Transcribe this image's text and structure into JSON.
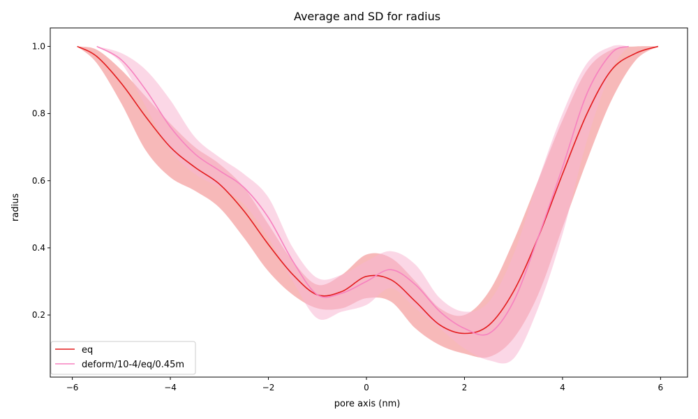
{
  "chart_data": {
    "type": "line",
    "title": "Average and SD for radius",
    "xlabel": "pore axis (nm)",
    "ylabel": "radius",
    "xlim": [
      -6.45,
      6.55
    ],
    "ylim": [
      0.015,
      1.055
    ],
    "xticks": [
      -6,
      -4,
      -2,
      0,
      2,
      4,
      6
    ],
    "xtick_labels": [
      "−6",
      "−4",
      "−2",
      "0",
      "2",
      "4",
      "6"
    ],
    "yticks": [
      0.2,
      0.4,
      0.6,
      0.8,
      1.0
    ],
    "ytick_labels": [
      "0.2",
      "0.4",
      "0.6",
      "0.8",
      "1.0"
    ],
    "legend_position": "lower-left",
    "grid": false,
    "series": [
      {
        "name": "eq",
        "color": "#e31a1c",
        "band_color": "#f08080",
        "x": [
          -5.9,
          -5.5,
          -5.0,
          -4.5,
          -4.0,
          -3.5,
          -3.0,
          -2.5,
          -2.0,
          -1.5,
          -1.0,
          -0.5,
          0.0,
          0.5,
          1.0,
          1.5,
          2.0,
          2.5,
          3.0,
          3.5,
          4.0,
          4.5,
          5.0,
          5.5,
          5.95
        ],
        "mean": [
          1.0,
          0.97,
          0.89,
          0.79,
          0.7,
          0.64,
          0.59,
          0.51,
          0.41,
          0.32,
          0.26,
          0.27,
          0.315,
          0.305,
          0.24,
          0.17,
          0.145,
          0.17,
          0.27,
          0.43,
          0.62,
          0.8,
          0.93,
          0.98,
          1.0
        ],
        "upper": [
          1.0,
          0.99,
          0.93,
          0.85,
          0.77,
          0.7,
          0.65,
          0.58,
          0.47,
          0.36,
          0.29,
          0.32,
          0.38,
          0.37,
          0.3,
          0.22,
          0.2,
          0.27,
          0.42,
          0.6,
          0.78,
          0.93,
          0.99,
          1.0,
          1.0
        ],
        "lower": [
          1.0,
          0.95,
          0.83,
          0.69,
          0.61,
          0.57,
          0.52,
          0.43,
          0.33,
          0.26,
          0.22,
          0.22,
          0.25,
          0.24,
          0.16,
          0.11,
          0.085,
          0.075,
          0.13,
          0.26,
          0.46,
          0.66,
          0.84,
          0.96,
          1.0
        ]
      },
      {
        "name": "deform/10-4/eq/0.45m",
        "color": "#f781bf",
        "band_color": "#f7b6d2",
        "x": [
          -5.5,
          -5.0,
          -4.5,
          -4.0,
          -3.5,
          -3.0,
          -2.5,
          -2.0,
          -1.5,
          -1.0,
          -0.5,
          0.0,
          0.5,
          1.0,
          1.5,
          2.0,
          2.5,
          3.0,
          3.5,
          4.0,
          4.5,
          5.0,
          5.35
        ],
        "mean": [
          1.0,
          0.96,
          0.87,
          0.76,
          0.68,
          0.63,
          0.58,
          0.49,
          0.36,
          0.26,
          0.265,
          0.3,
          0.335,
          0.29,
          0.21,
          0.16,
          0.145,
          0.24,
          0.43,
          0.64,
          0.86,
          0.98,
          1.0
        ],
        "upper": [
          1.0,
          0.98,
          0.93,
          0.84,
          0.73,
          0.67,
          0.62,
          0.55,
          0.4,
          0.31,
          0.32,
          0.36,
          0.39,
          0.35,
          0.25,
          0.21,
          0.24,
          0.38,
          0.6,
          0.8,
          0.95,
          1.0,
          1.0
        ],
        "lower": [
          1.0,
          0.95,
          0.82,
          0.69,
          0.62,
          0.58,
          0.53,
          0.43,
          0.3,
          0.19,
          0.21,
          0.23,
          0.28,
          0.22,
          0.16,
          0.1,
          0.065,
          0.07,
          0.22,
          0.44,
          0.72,
          0.93,
          1.0
        ]
      }
    ]
  }
}
